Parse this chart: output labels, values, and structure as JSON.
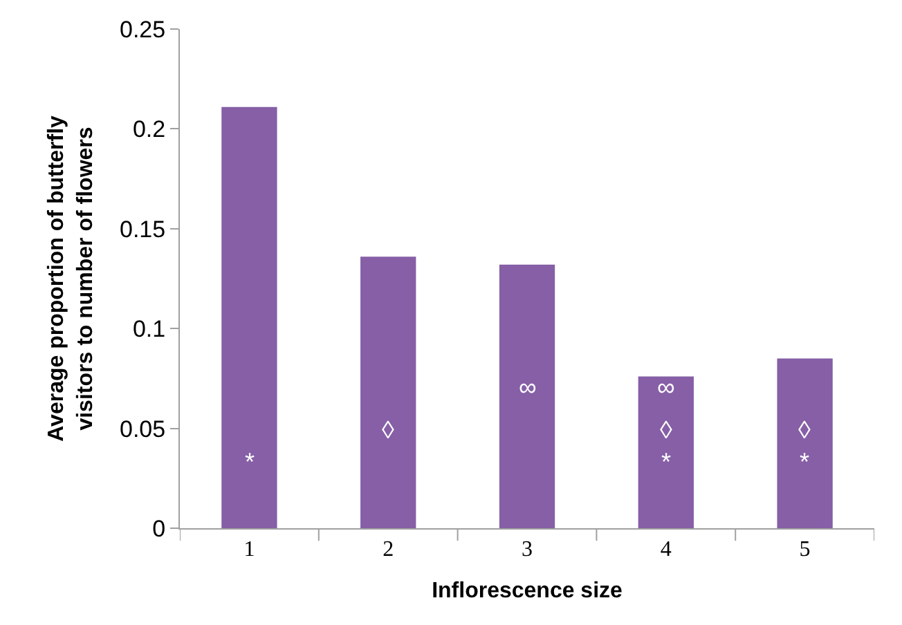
{
  "chart_data": {
    "type": "bar",
    "xlabel": "Inflorescence size",
    "ylabel": "Average proportion of butterfly visitors to number of flowers",
    "categories": [
      "1",
      "2",
      "3",
      "4",
      "5"
    ],
    "values": [
      0.211,
      0.136,
      0.132,
      0.076,
      0.085
    ],
    "color": "#865fa6",
    "ylim": [
      0,
      0.25
    ],
    "yticks": [
      {
        "value": 0,
        "label": "0"
      },
      0.05,
      0.1,
      0.15,
      0.2,
      0.25
    ],
    "annotations": [
      "*",
      "◊",
      "∞",
      "∞",
      "◊",
      "*",
      "◊",
      "*"
    ]
  }
}
